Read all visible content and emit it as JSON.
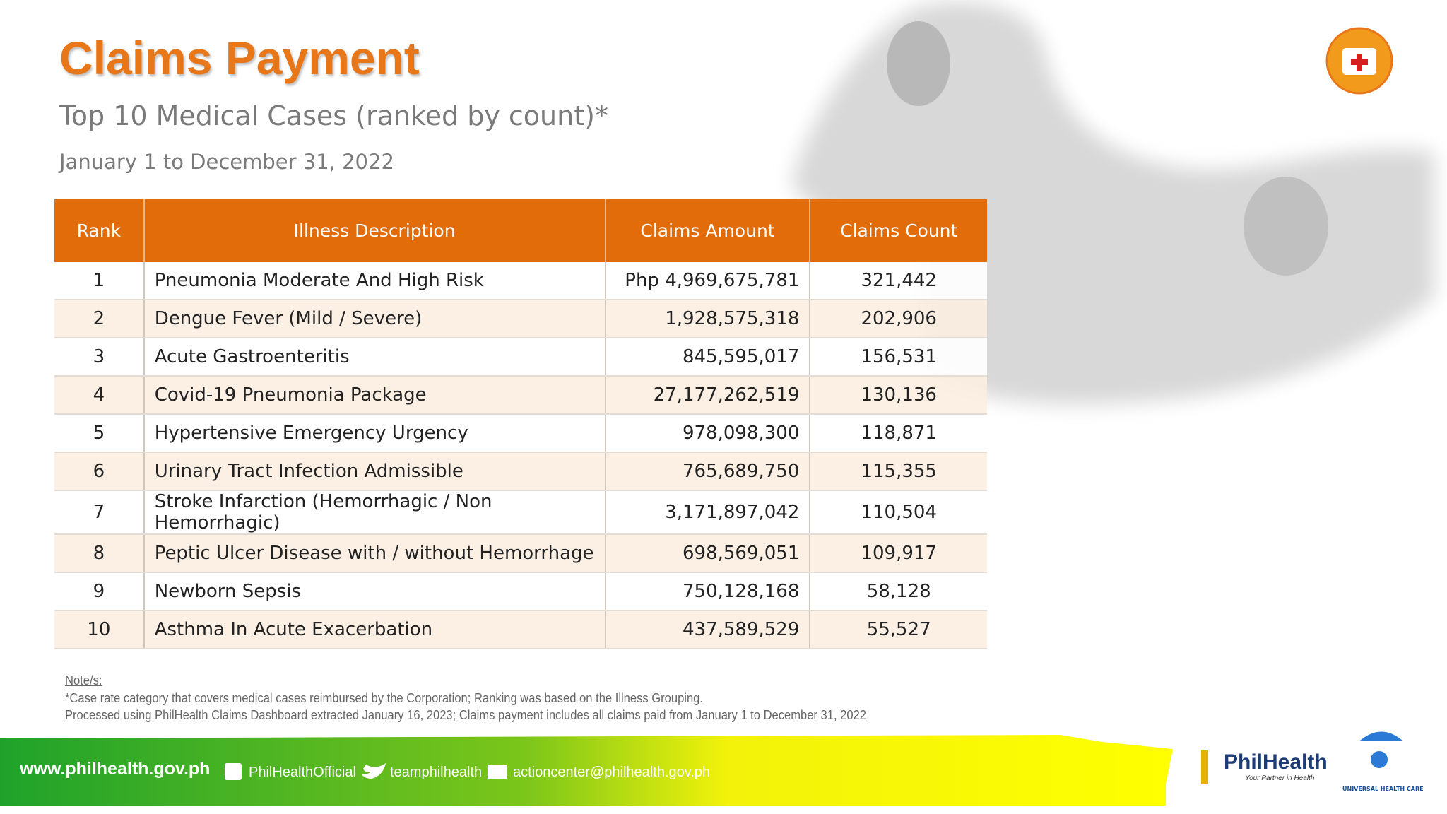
{
  "header": {
    "title": "Claims Payment",
    "subtitle": "Top 10 Medical Cases (ranked by count)*",
    "period": "January 1 to December 31, 2022"
  },
  "table": {
    "columns": [
      "Rank",
      "Illness Description",
      "Claims Amount",
      "Claims Count"
    ],
    "rows": [
      [
        "1",
        "Pneumonia Moderate And High  Risk",
        "Php 4,969,675,781",
        "321,442"
      ],
      [
        "2",
        "Dengue Fever (Mild / Severe)",
        "1,928,575,318",
        "202,906"
      ],
      [
        "3",
        "Acute Gastroenteritis",
        "845,595,017",
        "156,531"
      ],
      [
        "4",
        "Covid-19 Pneumonia Package",
        "27,177,262,519",
        "130,136"
      ],
      [
        "5",
        "Hypertensive Emergency Urgency",
        "978,098,300",
        "118,871"
      ],
      [
        "6",
        "Urinary Tract Infection Admissible",
        "765,689,750",
        "115,355"
      ],
      [
        "7",
        "Stroke  Infarction (Hemorrhagic / Non Hemorrhagic)",
        "3,171,897,042",
        "110,504"
      ],
      [
        "8",
        "Peptic Ulcer Disease with / without Hemorrhage",
        "698,569,051",
        "109,917"
      ],
      [
        "9",
        "Newborn Sepsis",
        "750,128,168",
        "58,128"
      ],
      [
        "10",
        "Asthma In Acute Exacerbation",
        "437,589,529",
        "55,527"
      ]
    ]
  },
  "notes": {
    "heading": "Note/s:",
    "lines": [
      "*Case rate category that covers medical cases reimbursed by the Corporation; Ranking was based on the Illness Grouping.",
      "Processed using PhilHealth Claims Dashboard extracted January 16, 2023; Claims payment includes all claims paid from January 1 to December 31, 2022"
    ]
  },
  "footer": {
    "website": "www.philhealth.gov.ph",
    "facebook": "PhilHealthOfficial",
    "twitter": "teamphilhealth",
    "email": "actioncenter@philhealth.gov.ph",
    "brand": "PhilHealth",
    "tagline": "Your Partner in Health",
    "uhc": "UNIVERSAL HEALTH CARE"
  }
}
